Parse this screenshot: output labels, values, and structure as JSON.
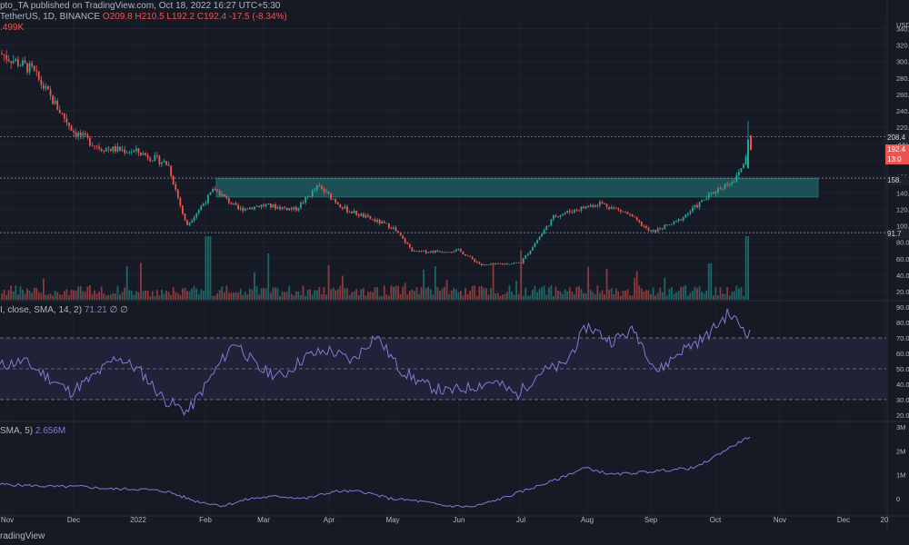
{
  "header": {
    "published": "pto_TA published on TradingView.com, Oct 18, 2022 16:27 UTC+5:30",
    "symbol": "TetherUS, 1D, BINANCE",
    "ohlc": "O209.8 H210.5 L192.2 C192.4 -17.5 (-8.34%)",
    "volume": ".499K"
  },
  "rsi_header": {
    "label": "I, close, SMA, 14, 2)",
    "value": "71.21",
    "extra": "∅ ∅"
  },
  "obv_header": {
    "label": "SMA, 5)",
    "value": "2.656M"
  },
  "footer": {
    "brand": "radingView"
  },
  "price_tags": {
    "last": "208.4",
    "close": "192.4",
    "timer": "13:0",
    "resistance": "158.",
    "support": "91.7"
  },
  "colors": {
    "background": "#161a25",
    "up": "#26a69a",
    "down": "#ef5350",
    "zone": "#1e5a5e",
    "indicator": "#7e7bd6",
    "rsi_band": "#2a2845"
  },
  "chart_data": [
    {
      "type": "candlestick",
      "title": "TetherUS, 1D, BINANCE",
      "x_ticks": [
        "Nov",
        "Dec",
        "2022",
        "Feb",
        "Mar",
        "Apr",
        "May",
        "Jun",
        "Jul",
        "Aug",
        "Sep",
        "Oct",
        "Nov",
        "Dec",
        "20"
      ],
      "y_ticks": [
        20,
        40,
        60,
        80,
        100,
        120,
        140,
        160,
        180,
        200,
        220,
        240,
        260,
        280,
        300,
        320,
        340
      ],
      "ylim": [
        10,
        355
      ],
      "currency": "USD",
      "horizontal_levels": [
        208.4,
        158,
        91.7
      ],
      "zone": {
        "from": "Feb",
        "to": "Nov",
        "low": 135,
        "high": 158
      },
      "close_path": [
        [
          "Nov",
          310
        ],
        [
          "Nov-mid",
          290
        ],
        [
          "Dec",
          215
        ],
        [
          "Dec-mid",
          195
        ],
        [
          "2022",
          190
        ],
        [
          "Jan-mid",
          175
        ],
        [
          "Feb",
          100
        ],
        [
          "Feb-a",
          145
        ],
        [
          "Feb-mid",
          120
        ],
        [
          "Mar",
          125
        ],
        [
          "Mar-mid",
          120
        ],
        [
          "Apr",
          148
        ],
        [
          "Apr-mid",
          120
        ],
        [
          "May",
          98
        ],
        [
          "May-mid",
          68
        ],
        [
          "Jun",
          70
        ],
        [
          "Jun-mid",
          52
        ],
        [
          "Jul",
          55
        ],
        [
          "Jul-mid",
          112
        ],
        [
          "Aug",
          128
        ],
        [
          "Aug-mid",
          115
        ],
        [
          "Sep",
          92
        ],
        [
          "Sep-mid",
          105
        ],
        [
          "Oct",
          143
        ],
        [
          "Oct-mid",
          158
        ],
        [
          "Oct-18",
          192.4
        ]
      ]
    },
    {
      "type": "line",
      "title": "RSI",
      "y_ticks": [
        20,
        30,
        40,
        50,
        60,
        70,
        80,
        90
      ],
      "ylim": [
        17,
        93
      ],
      "levels": [
        30,
        50,
        70
      ],
      "values": [
        52,
        55,
        45,
        35,
        45,
        58,
        48,
        30,
        22,
        45,
        68,
        50,
        45,
        58,
        62,
        55,
        72,
        50,
        40,
        35,
        38,
        42,
        33,
        48,
        52,
        78,
        68,
        75,
        48,
        62,
        70,
        86,
        71.21
      ]
    },
    {
      "type": "line",
      "title": "OBV",
      "y_ticks": [
        "0",
        "1M",
        "2M",
        "3M"
      ],
      "ylim": [
        -0.5,
        3.2
      ],
      "values": [
        0.6,
        0.55,
        0.5,
        0.5,
        0.4,
        0.4,
        0.3,
        -0.1,
        -0.3,
        0.0,
        0.1,
        0.0,
        0.3,
        0.3,
        0.0,
        -0.1,
        -0.3,
        -0.35,
        0.0,
        0.4,
        0.8,
        1.3,
        1.0,
        1.1,
        1.2,
        1.3,
        2.0,
        2.656
      ]
    }
  ]
}
